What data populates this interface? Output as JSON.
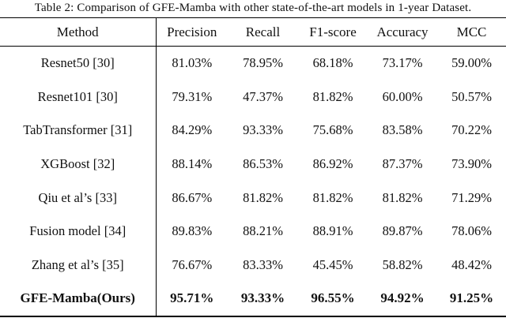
{
  "caption": "Table 2: Comparison of GFE-Mamba with other state-of-the-art models in 1-year Dataset.",
  "table": {
    "columns": [
      "Method",
      "Precision",
      "Recall",
      "F1-score",
      "Accuracy",
      "MCC"
    ],
    "rows": [
      {
        "method": "Resnet50 [30]",
        "values": [
          "81.03%",
          "78.95%",
          "68.18%",
          "73.17%",
          "59.00%"
        ],
        "bold": false
      },
      {
        "method": "Resnet101 [30]",
        "values": [
          "79.31%",
          "47.37%",
          "81.82%",
          "60.00%",
          "50.57%"
        ],
        "bold": false
      },
      {
        "method": "TabTransformer [31]",
        "values": [
          "84.29%",
          "93.33%",
          "75.68%",
          "83.58%",
          "70.22%"
        ],
        "bold": false
      },
      {
        "method": "XGBoost [32]",
        "values": [
          "88.14%",
          "86.53%",
          "86.92%",
          "87.37%",
          "73.90%"
        ],
        "bold": false
      },
      {
        "method": "Qiu et al’s [33]",
        "values": [
          "86.67%",
          "81.82%",
          "81.82%",
          "81.82%",
          "71.29%"
        ],
        "bold": false
      },
      {
        "method": "Fusion model [34]",
        "values": [
          "89.83%",
          "88.21%",
          "88.91%",
          "89.87%",
          "78.06%"
        ],
        "bold": false
      },
      {
        "method": "Zhang et al’s [35]",
        "values": [
          "76.67%",
          "83.33%",
          "45.45%",
          "58.82%",
          "48.42%"
        ],
        "bold": false
      },
      {
        "method": "GFE-Mamba(Ours)",
        "values": [
          "95.71%",
          "93.33%",
          "96.55%",
          "94.92%",
          "91.25%"
        ],
        "bold": true
      }
    ]
  },
  "colors": {
    "text": "#111111",
    "rule": "#000000",
    "background": "#ffffff"
  }
}
